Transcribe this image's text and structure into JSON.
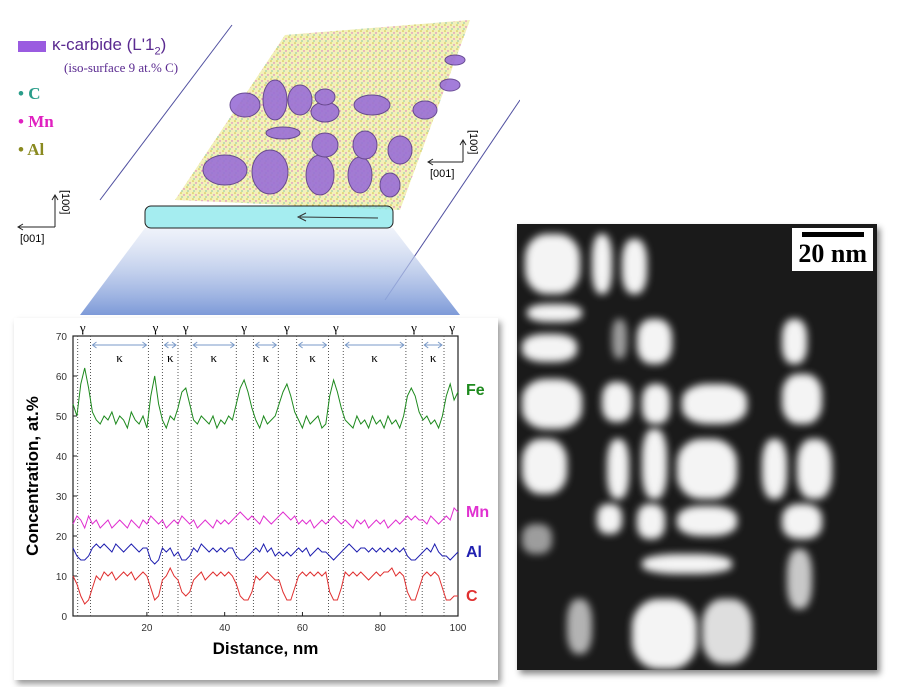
{
  "legend": {
    "kappa_label": "κ-carbide (L'1",
    "kappa_sub": "2",
    "kappa_close": ")",
    "iso": "(iso-surface 9 at.% C)",
    "items": [
      {
        "label": "C",
        "color": "#2a9d8a"
      },
      {
        "label": "Mn",
        "color": "#e020c0"
      },
      {
        "label": "Al",
        "color": "#8a8a20"
      }
    ],
    "kappa_color": "#9a5be0"
  },
  "axes3d": {
    "up": "[100]",
    "left": "[001]"
  },
  "tem": {
    "scale_label": "20 nm"
  },
  "chart_data": {
    "type": "line",
    "xlabel": "Distance, nm",
    "ylabel": "Concentration, at.%",
    "xlim": [
      1,
      100
    ],
    "ylim": [
      0,
      70
    ],
    "xticks": [
      20,
      40,
      60,
      80,
      100
    ],
    "yticks": [
      0,
      10,
      20,
      30,
      40,
      50,
      60,
      70
    ],
    "gamma_label": "γ",
    "kappa_label": "κ",
    "boundaries": [
      2.2,
      5.5,
      20.4,
      24.0,
      28.0,
      31.4,
      43.0,
      47.4,
      53.8,
      58.5,
      66.7,
      70.5,
      86.6,
      90.8,
      96.4
    ],
    "gamma_positions": [
      3.5,
      22.2,
      30,
      45,
      56,
      68.6,
      88.7,
      98.5
    ],
    "kappa_regions": [
      [
        5.5,
        20.4
      ],
      [
        24.0,
        28.0
      ],
      [
        31.4,
        43.0
      ],
      [
        47.4,
        53.8
      ],
      [
        58.5,
        66.7
      ],
      [
        70.5,
        86.6
      ],
      [
        90.8,
        96.4
      ]
    ],
    "x_start": 1,
    "x_step": 1,
    "series": [
      {
        "name": "Fe",
        "color": "#1e8a1e",
        "values": [
          53,
          50,
          58,
          62,
          57,
          51,
          49,
          48,
          50,
          49,
          51,
          48,
          50,
          49,
          47,
          51,
          49,
          48,
          50,
          47,
          55,
          60,
          53,
          49,
          47,
          50,
          49,
          52,
          56,
          57,
          53,
          49,
          48,
          50,
          49,
          48,
          50,
          47,
          49,
          48,
          50,
          49,
          53,
          57,
          59,
          56,
          52,
          49,
          47,
          50,
          48,
          49,
          50,
          53,
          56,
          58,
          55,
          51,
          49,
          47,
          50,
          48,
          49,
          50,
          47,
          48,
          55,
          59,
          56,
          52,
          49,
          48,
          47,
          50,
          48,
          49,
          47,
          50,
          48,
          49,
          47,
          50,
          48,
          49,
          47,
          50,
          55,
          57,
          55,
          51,
          49,
          50,
          48,
          49,
          47,
          50,
          55,
          58,
          54,
          56
        ]
      },
      {
        "name": "Mn",
        "color": "#e030d0",
        "values": [
          23,
          25,
          24,
          22,
          25,
          23,
          24,
          22,
          23,
          24,
          22,
          23,
          24,
          23,
          22,
          24,
          23,
          22,
          24,
          23,
          25,
          24,
          23,
          24,
          22,
          23,
          24,
          23,
          25,
          24,
          23,
          24,
          22,
          23,
          24,
          23,
          22,
          24,
          23,
          24,
          23,
          24,
          25,
          26,
          25,
          24,
          25,
          24,
          23,
          25,
          24,
          23,
          24,
          25,
          26,
          25,
          24,
          25,
          23,
          24,
          23,
          24,
          22,
          23,
          24,
          23,
          24,
          25,
          24,
          23,
          24,
          23,
          22,
          24,
          23,
          24,
          22,
          23,
          24,
          23,
          24,
          22,
          23,
          24,
          23,
          24,
          25,
          24,
          25,
          24,
          24,
          23,
          25,
          24,
          23,
          24,
          25,
          24,
          27,
          26
        ]
      },
      {
        "name": "Al",
        "color": "#2020b0",
        "values": [
          17,
          15,
          14,
          14,
          15,
          17,
          18,
          17,
          18,
          17,
          16,
          18,
          17,
          16,
          17,
          18,
          17,
          16,
          17,
          17,
          14,
          13,
          14,
          17,
          16,
          17,
          15,
          16,
          14,
          14,
          15,
          17,
          16,
          18,
          17,
          16,
          17,
          16,
          17,
          16,
          17,
          17,
          15,
          14,
          14,
          15,
          16,
          17,
          16,
          18,
          16,
          17,
          15,
          16,
          15,
          16,
          15,
          16,
          17,
          16,
          17,
          15,
          16,
          17,
          16,
          16,
          15,
          14,
          15,
          16,
          17,
          18,
          17,
          16,
          17,
          17,
          16,
          17,
          16,
          17,
          16,
          17,
          16,
          17,
          16,
          17,
          15,
          14,
          14,
          15,
          16,
          17,
          16,
          18,
          16,
          15,
          15,
          14,
          15,
          16
        ]
      },
      {
        "name": "C",
        "color": "#e03030",
        "values": [
          10,
          8,
          5,
          3,
          4,
          7,
          10,
          9,
          11,
          10,
          11,
          9,
          10,
          11,
          10,
          11,
          9,
          10,
          11,
          10,
          7,
          4,
          5,
          9,
          10,
          12,
          10,
          9,
          6,
          5,
          6,
          9,
          10,
          11,
          9,
          10,
          11,
          10,
          11,
          10,
          11,
          10,
          8,
          5,
          4,
          4,
          6,
          10,
          9,
          10,
          11,
          10,
          9,
          9,
          6,
          4,
          4,
          7,
          10,
          11,
          10,
          11,
          10,
          11,
          10,
          11,
          6,
          4,
          4,
          7,
          11,
          10,
          11,
          10,
          11,
          10,
          9,
          10,
          11,
          10,
          11,
          11,
          12,
          10,
          11,
          10,
          6,
          4,
          4,
          7,
          10,
          11,
          10,
          11,
          10,
          7,
          4,
          4,
          5,
          5
        ]
      }
    ]
  }
}
